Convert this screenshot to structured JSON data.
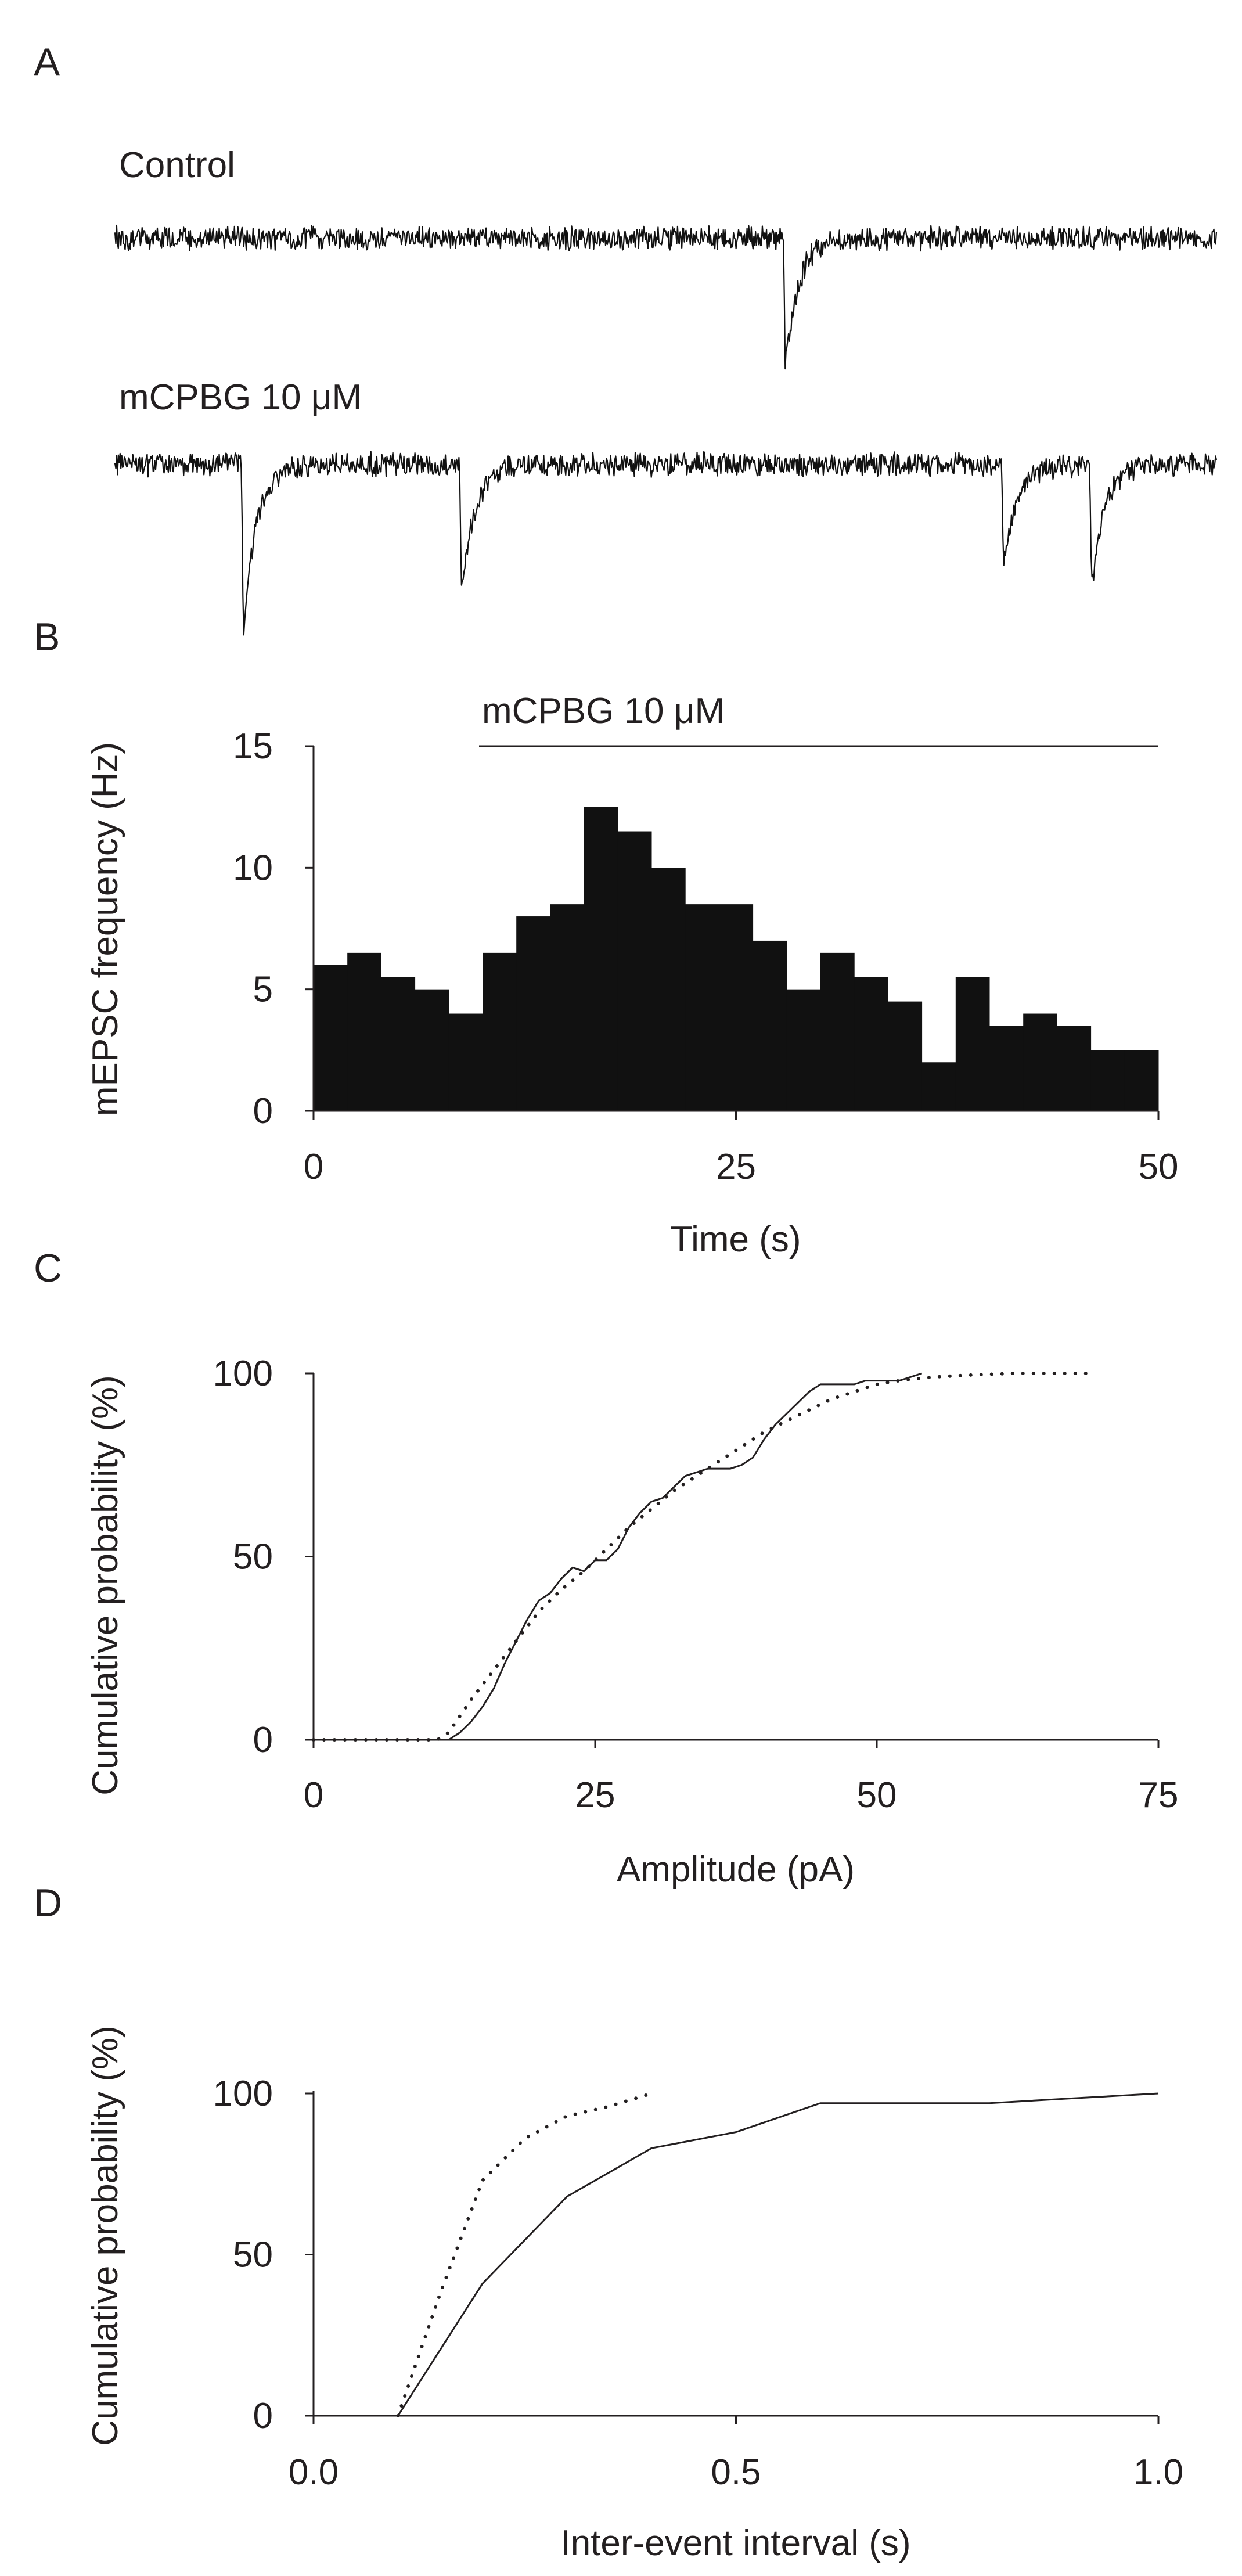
{
  "panels": {
    "A": {
      "letter": "A",
      "control_label": "Control",
      "drug_label": "mCPBG 10 μM",
      "control_events": [
        0.607
      ],
      "drug_events": [
        0.115,
        0.313,
        0.805,
        0.885
      ]
    },
    "B": {
      "letter": "B",
      "drug_bar_label": "mCPBG 10 μM"
    },
    "C": {
      "letter": "C"
    },
    "D": {
      "letter": "D"
    }
  },
  "chart_data": [
    {
      "id": "A",
      "type": "line",
      "title": "",
      "series": [
        {
          "name": "Control",
          "events_fraction_of_trace": [
            0.607
          ],
          "event_amplitude_rel": [
            1.0
          ]
        },
        {
          "name": "mCPBG 10 μM",
          "events_fraction_of_trace": [
            0.115,
            0.313,
            0.805,
            0.885
          ],
          "event_amplitude_rel": [
            1.3,
            1.0,
            0.8,
            0.95
          ]
        }
      ]
    },
    {
      "id": "B",
      "type": "bar",
      "xlabel": "Time (s)",
      "ylabel": "mEPSC frequency (Hz)",
      "xlim": [
        0,
        50
      ],
      "ylim": [
        0,
        15
      ],
      "xticks": [
        "0",
        "25",
        "50"
      ],
      "yticks": [
        "0",
        "5",
        "10",
        "15"
      ],
      "bin_width_s": 2,
      "x": [
        0,
        2,
        4,
        6,
        8,
        10,
        12,
        14,
        16,
        18,
        20,
        22,
        24,
        26,
        28,
        30,
        32,
        34,
        36,
        38,
        40,
        42,
        44,
        46,
        48
      ],
      "values": [
        6,
        6.5,
        5.5,
        5,
        4,
        6.5,
        8,
        8.5,
        12.5,
        11.5,
        10,
        8.5,
        8.5,
        7,
        5,
        6.5,
        5.5,
        4.5,
        2,
        5.5,
        3.5,
        4,
        3.5,
        2.5,
        2.5
      ],
      "drug_bar": {
        "label": "mCPBG 10 μM",
        "start_s": 10,
        "end_s": 50
      }
    },
    {
      "id": "C",
      "type": "line",
      "xlabel": "Amplitude (pA)",
      "ylabel": "Cumulative probability (%)",
      "xlim": [
        0,
        75
      ],
      "ylim": [
        0,
        100
      ],
      "xticks": [
        "0",
        "25",
        "50",
        "75"
      ],
      "yticks": [
        "0",
        "50",
        "100"
      ],
      "series": [
        {
          "name": "mCPBG 10 μM",
          "style": "solid",
          "x": [
            12,
            13,
            14,
            15,
            16,
            17,
            18,
            19,
            20,
            21,
            22,
            23,
            24,
            25,
            26,
            27,
            28,
            29,
            30,
            31,
            32,
            33,
            34,
            35,
            36,
            37,
            38,
            39,
            40,
            41,
            42,
            43,
            44,
            45,
            46,
            47,
            48,
            49,
            50,
            51,
            52,
            53,
            54
          ],
          "y": [
            0,
            2,
            5,
            9,
            14,
            21,
            27,
            33,
            38,
            40,
            44,
            47,
            46,
            49,
            49,
            52,
            58,
            62,
            65,
            66,
            69,
            72,
            73,
            74,
            74,
            74,
            75,
            77,
            82,
            86,
            89,
            92,
            95,
            97,
            97,
            97,
            97,
            98,
            98,
            98,
            98,
            99,
            100
          ]
        },
        {
          "name": "Control",
          "style": "dotted",
          "x": [
            0,
            5,
            10,
            11,
            12,
            14,
            16,
            18,
            20,
            22,
            24,
            26,
            28,
            30,
            32,
            34,
            36,
            38,
            40,
            42,
            44,
            46,
            48,
            50,
            52,
            55,
            58,
            62,
            66,
            69
          ],
          "y": [
            0,
            0,
            0,
            0,
            2,
            11,
            19,
            27,
            35,
            41,
            46,
            52,
            58,
            63,
            68,
            72,
            76,
            80,
            84,
            87,
            90,
            93,
            95,
            97,
            98,
            99,
            99.5,
            100,
            100,
            100
          ]
        }
      ]
    },
    {
      "id": "D",
      "type": "line",
      "xlabel": "Inter-event interval (s)",
      "ylabel": "Cumulative probability (%)",
      "xlim": [
        0,
        1.0
      ],
      "ylim": [
        0,
        100
      ],
      "xticks": [
        "0.0",
        "0.5",
        "1.0"
      ],
      "yticks": [
        "0",
        "50",
        "100"
      ],
      "series": [
        {
          "name": "mCPBG 10 μM",
          "style": "solid",
          "x": [
            0.1,
            0.2,
            0.3,
            0.4,
            0.5,
            0.6,
            0.7,
            0.8,
            0.9,
            1.0
          ],
          "y": [
            0,
            41,
            68,
            83,
            88,
            97,
            97,
            97,
            98.5,
            100
          ]
        },
        {
          "name": "Control",
          "style": "dotted",
          "x": [
            0.1,
            0.15,
            0.2,
            0.25,
            0.3,
            0.35,
            0.4
          ],
          "y": [
            0,
            38,
            73,
            86,
            93,
            96,
            100
          ]
        }
      ]
    }
  ]
}
